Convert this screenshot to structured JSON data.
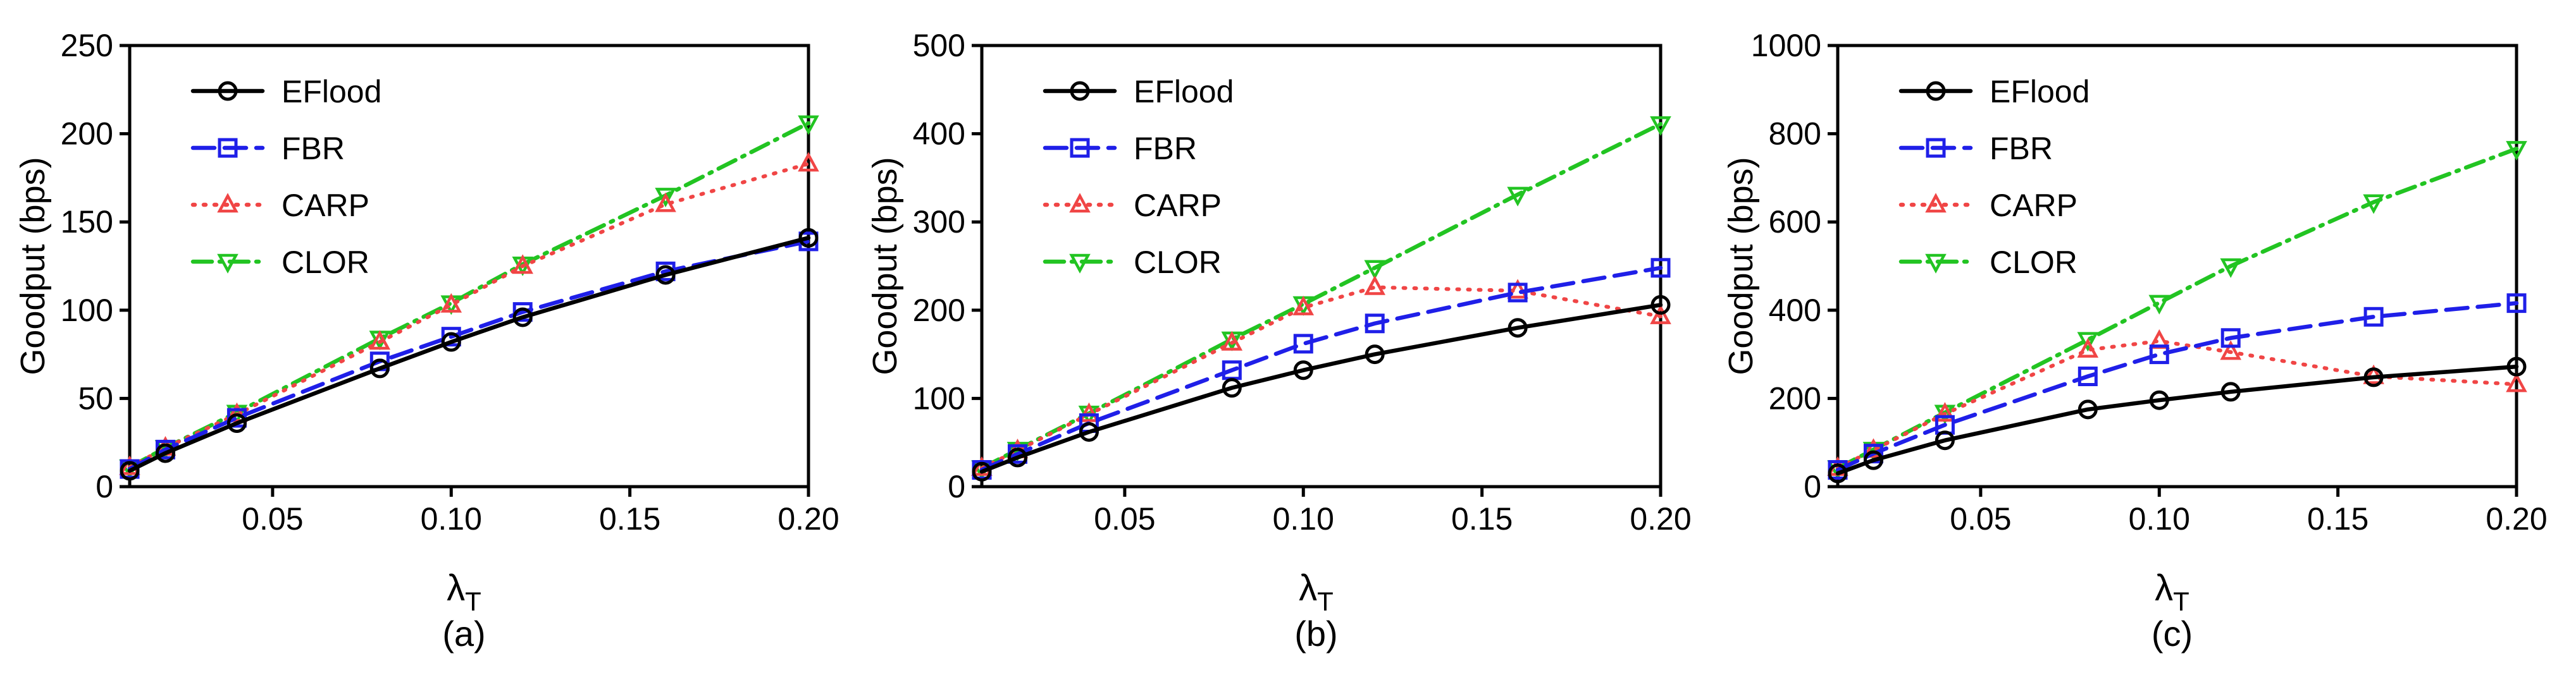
{
  "chart_data": [
    {
      "type": "line",
      "panel_label": "(a)",
      "xlabel": "λ",
      "xlabel_sub": "T",
      "ylabel": "Goodput (bps)",
      "xlim": [
        0.01,
        0.2
      ],
      "ylim": [
        0,
        250
      ],
      "xticks": [
        "0.05",
        "0.10",
        "0.15",
        "0.20"
      ],
      "xtick_values": [
        0.05,
        0.1,
        0.15,
        0.2
      ],
      "yticks": [
        "0",
        "50",
        "100",
        "150",
        "200",
        "250"
      ],
      "ytick_values": [
        0,
        50,
        100,
        150,
        200,
        250
      ],
      "x": [
        0.01,
        0.02,
        0.04,
        0.08,
        0.1,
        0.12,
        0.16,
        0.2
      ],
      "series": [
        {
          "name": "EFlood",
          "values": [
            9,
            19,
            36,
            67,
            82,
            96,
            120,
            141
          ]
        },
        {
          "name": "FBR",
          "values": [
            10,
            21,
            39,
            71,
            85,
            99,
            122,
            139
          ]
        },
        {
          "name": "CARP",
          "values": [
            11,
            22,
            41,
            82,
            103,
            125,
            160,
            183
          ]
        },
        {
          "name": "CLOR",
          "values": [
            11,
            22,
            42,
            84,
            104,
            126,
            165,
            206
          ]
        }
      ]
    },
    {
      "type": "line",
      "panel_label": "(b)",
      "xlabel": "λ",
      "xlabel_sub": "T",
      "ylabel": "Goodput (bps)",
      "xlim": [
        0.01,
        0.2
      ],
      "ylim": [
        0,
        500
      ],
      "xticks": [
        "0.05",
        "0.10",
        "0.15",
        "0.20"
      ],
      "xtick_values": [
        0.05,
        0.1,
        0.15,
        0.2
      ],
      "yticks": [
        "0",
        "100",
        "200",
        "300",
        "400",
        "500"
      ],
      "ytick_values": [
        0,
        100,
        200,
        300,
        400,
        500
      ],
      "x": [
        0.01,
        0.02,
        0.04,
        0.08,
        0.1,
        0.12,
        0.16,
        0.2
      ],
      "series": [
        {
          "name": "EFlood",
          "values": [
            17,
            33,
            62,
            112,
            132,
            150,
            180,
            206
          ]
        },
        {
          "name": "FBR",
          "values": [
            19,
            37,
            72,
            132,
            162,
            185,
            220,
            248
          ]
        },
        {
          "name": "CARP",
          "values": [
            21,
            41,
            82,
            163,
            203,
            226,
            222,
            193
          ]
        },
        {
          "name": "CLOR",
          "values": [
            21,
            42,
            83,
            167,
            207,
            248,
            331,
            411
          ]
        }
      ]
    },
    {
      "type": "line",
      "panel_label": "(c)",
      "xlabel": "λ",
      "xlabel_sub": "T",
      "ylabel": "Goodput (bps)",
      "xlim": [
        0.01,
        0.2
      ],
      "ylim": [
        0,
        1000
      ],
      "xticks": [
        "0.05",
        "0.10",
        "0.15",
        "0.20"
      ],
      "xtick_values": [
        0.05,
        0.1,
        0.15,
        0.2
      ],
      "yticks": [
        "0",
        "200",
        "400",
        "600",
        "800",
        "1000"
      ],
      "ytick_values": [
        0,
        200,
        400,
        600,
        800,
        1000
      ],
      "x": [
        0.01,
        0.02,
        0.04,
        0.08,
        0.1,
        0.12,
        0.16,
        0.2
      ],
      "series": [
        {
          "name": "EFlood",
          "values": [
            30,
            60,
            105,
            175,
            196,
            215,
            248,
            272
          ]
        },
        {
          "name": "FBR",
          "values": [
            38,
            75,
            140,
            250,
            300,
            337,
            385,
            416
          ]
        },
        {
          "name": "CARP",
          "values": [
            42,
            83,
            165,
            310,
            330,
            305,
            250,
            232
          ]
        },
        {
          "name": "CLOR",
          "values": [
            42,
            84,
            168,
            333,
            417,
            500,
            645,
            766
          ]
        }
      ]
    }
  ],
  "style": {
    "colors": {
      "EFlood": "#000000",
      "FBR": "#1f1fe8",
      "CARP": "#f04545",
      "CLOR": "#22c422"
    },
    "dashes": {
      "EFlood": "",
      "FBR": "34,16",
      "CARP": "3,14",
      "CLOR": "30,12,4,12"
    },
    "markers": {
      "EFlood": "circle",
      "FBR": "square",
      "CARP": "triangle-up",
      "CLOR": "triangle-down"
    }
  }
}
